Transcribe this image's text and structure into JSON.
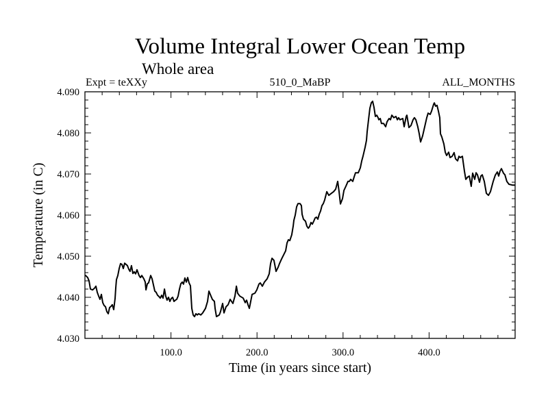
{
  "chart_data": {
    "type": "line",
    "title": "Volume Integral Lower Ocean Temp",
    "subtitle": "Whole area",
    "annotations": {
      "left": "Expt = teXXy",
      "center": "510_0_MaBP",
      "right": "ALL_MONTHS"
    },
    "xlabel": "Time (in years since start)",
    "ylabel": "Temperature (in C)",
    "xlim": [
      0,
      500
    ],
    "ylim": [
      4.03,
      4.09
    ],
    "x_ticks": [
      {
        "value": 100,
        "label": "100.0"
      },
      {
        "value": 200,
        "label": "200.0"
      },
      {
        "value": 300,
        "label": "300.0"
      },
      {
        "value": 400,
        "label": "400.0"
      }
    ],
    "x_minor_step": 20,
    "y_ticks": [
      {
        "value": 4.03,
        "label": "4.030"
      },
      {
        "value": 4.04,
        "label": "4.040"
      },
      {
        "value": 4.05,
        "label": "4.050"
      },
      {
        "value": 4.06,
        "label": "4.060"
      },
      {
        "value": 4.07,
        "label": "4.070"
      },
      {
        "value": 4.08,
        "label": "4.080"
      },
      {
        "value": 4.09,
        "label": "4.090"
      }
    ],
    "y_minor_step": 0.002,
    "grid": false,
    "legend": "none",
    "series": [
      {
        "name": "Lower Ocean Temp",
        "color": "#000000",
        "x": [
          0.8,
          3.2,
          4.8,
          6.4,
          8.8,
          11.1,
          12.7,
          14.3,
          15.9,
          17.5,
          19.1,
          20.7,
          22.3,
          23.9,
          25.5,
          27.1,
          28.7,
          30.3,
          31.8,
          33.4,
          35.0,
          35.8,
          36.6,
          38.2,
          39.8,
          41.4,
          43.0,
          44.6,
          46.2,
          47.8,
          49.4,
          51.0,
          52.5,
          54.1,
          55.7,
          57.3,
          58.9,
          60.5,
          62.9,
          64.5,
          66.1,
          68.5,
          70.1,
          70.9,
          72.5,
          74.0,
          76.4,
          78.0,
          79.6,
          81.2,
          82.8,
          84.4,
          86.0,
          87.6,
          89.2,
          90.8,
          92.4,
          93.9,
          95.5,
          97.1,
          98.7,
          100.3,
          101.9,
          103.5,
          105.1,
          106.7,
          108.3,
          109.9,
          111.5,
          113.1,
          114.6,
          116.2,
          117.8,
          119.4,
          121.0,
          122.6,
          124.2,
          125.8,
          127.4,
          129.0,
          130.6,
          132.2,
          134.6,
          136.9,
          140.1,
          142.5,
          144.1,
          146.5,
          148.1,
          150.5,
          151.3,
          152.9,
          156.1,
          157.6,
          160.0,
          161.6,
          164.0,
          166.4,
          168.8,
          172.0,
          174.4,
          176.0,
          177.5,
          179.9,
          183.9,
          186.3,
          187.9,
          189.5,
          191.1,
          192.7,
          194.3,
          197.5,
          199.8,
          202.2,
          203.8,
          206.2,
          208.6,
          211.8,
          214.2,
          215.8,
          217.4,
          219.7,
          222.1,
          224.5,
          226.1,
          228.5,
          230.9,
          233.3,
          234.9,
          236.5,
          238.1,
          240.4,
          242.0,
          242.8,
          244.4,
          246.0,
          247.6,
          250.0,
          251.6,
          252.4,
          254.0,
          256.4,
          258.0,
          259.6,
          261.1,
          262.7,
          264.3,
          265.9,
          267.5,
          269.1,
          270.7,
          272.3,
          273.9,
          275.5,
          277.1,
          278.7,
          281.1,
          283.4,
          285.8,
          289.0,
          291.4,
          293.8,
          295.4,
          297.0,
          299.4,
          301.0,
          303.3,
          305.7,
          307.3,
          308.9,
          311.3,
          312.9,
          314.5,
          317.7,
          320.1,
          321.7,
          323.2,
          325.6,
          327.2,
          328.0,
          329.6,
          331.2,
          332.8,
          334.4,
          336.0,
          337.6,
          339.2,
          340.8,
          341.6,
          343.2,
          344.7,
          347.1,
          349.5,
          351.1,
          353.5,
          355.1,
          356.7,
          359.1,
          361.5,
          363.1,
          364.6,
          366.2,
          369.4,
          371.0,
          373.4,
          374.2,
          376.6,
          379.0,
          381.4,
          383.0,
          384.6,
          386.9,
          388.5,
          390.1,
          392.5,
          394.9,
          397.3,
          398.9,
          401.3,
          402.9,
          405.3,
          406.1,
          407.6,
          409.2,
          410.8,
          412.4,
          413.2,
          414.8,
          417.2,
          418.8,
          420.4,
          422.8,
          424.4,
          426.8,
          429.1,
          430.7,
          433.1,
          434.7,
          436.3,
          438.7,
          441.1,
          442.7,
          445.1,
          446.7,
          449.0,
          450.6,
          453.0,
          454.6,
          456.2,
          458.6,
          460.2,
          461.8,
          464.2,
          466.6,
          469.0,
          471.3,
          474.5,
          476.9,
          479.3,
          480.9,
          482.5,
          484.1,
          486.5,
          488.1,
          490.4,
          492.8,
          496.8,
          499.2
        ],
        "y": [
          4.0453,
          4.0448,
          4.044,
          4.042,
          4.0418,
          4.0422,
          4.0427,
          4.0412,
          4.0403,
          4.0395,
          4.0407,
          4.0387,
          4.038,
          4.0377,
          4.0365,
          4.036,
          4.0375,
          4.0378,
          4.0382,
          4.037,
          4.0397,
          4.0423,
          4.0443,
          4.0453,
          4.047,
          4.0482,
          4.048,
          4.047,
          4.0483,
          4.048,
          4.0477,
          4.0468,
          4.0463,
          4.0477,
          4.0458,
          4.0462,
          4.0457,
          4.0467,
          4.0453,
          4.0448,
          4.0453,
          4.0445,
          4.0437,
          4.0418,
          4.0433,
          4.0435,
          4.0453,
          4.0445,
          4.043,
          4.0415,
          4.0412,
          4.0405,
          4.0402,
          4.0398,
          4.0405,
          4.0398,
          4.042,
          4.0403,
          4.0393,
          4.04,
          4.039,
          4.0397,
          4.04,
          4.039,
          4.0393,
          4.0395,
          4.0403,
          4.042,
          4.0433,
          4.0437,
          4.0432,
          4.0447,
          4.0437,
          4.0448,
          4.0435,
          4.0428,
          4.0373,
          4.0357,
          4.0353,
          4.036,
          4.0357,
          4.036,
          4.0357,
          4.0362,
          4.0373,
          4.039,
          4.0415,
          4.0403,
          4.0395,
          4.039,
          4.0373,
          4.0353,
          4.0357,
          4.0365,
          4.0385,
          4.0362,
          4.0377,
          4.0382,
          4.0395,
          4.0385,
          4.0403,
          4.0427,
          4.041,
          4.0403,
          4.0398,
          4.0387,
          4.0393,
          4.0382,
          4.0373,
          4.039,
          4.0407,
          4.041,
          4.0418,
          4.0432,
          4.0435,
          4.0427,
          4.0437,
          4.0445,
          4.0457,
          4.0482,
          4.0495,
          4.049,
          4.0463,
          4.0473,
          4.0482,
          4.0493,
          4.0503,
          4.0513,
          4.0532,
          4.054,
          4.0538,
          4.0552,
          4.0573,
          4.0587,
          4.06,
          4.062,
          4.0628,
          4.0628,
          4.0623,
          4.0602,
          4.059,
          4.0585,
          4.0573,
          4.0568,
          4.0572,
          4.0582,
          4.0578,
          4.0585,
          4.0593,
          4.0595,
          4.059,
          4.0602,
          4.061,
          4.0623,
          4.0628,
          4.0637,
          4.0657,
          4.0648,
          4.0652,
          4.0657,
          4.0663,
          4.0682,
          4.0657,
          4.0627,
          4.064,
          4.066,
          4.067,
          4.0682,
          4.0682,
          4.0687,
          4.0682,
          4.0693,
          4.0703,
          4.0703,
          4.0715,
          4.0732,
          4.0743,
          4.0765,
          4.0782,
          4.0803,
          4.0832,
          4.086,
          4.0873,
          4.0877,
          4.0862,
          4.084,
          4.0843,
          4.0837,
          4.0832,
          4.0835,
          4.0823,
          4.0823,
          4.0815,
          4.0827,
          4.0835,
          4.0832,
          4.0843,
          4.0837,
          4.084,
          4.0832,
          4.0837,
          4.0832,
          4.0835,
          4.0815,
          4.084,
          4.0843,
          4.0813,
          4.0818,
          4.0832,
          4.0837,
          4.0832,
          4.0815,
          4.0798,
          4.0778,
          4.0793,
          4.0815,
          4.0837,
          4.0848,
          4.0845,
          4.0853,
          4.087,
          4.0873,
          4.0865,
          4.0867,
          4.0853,
          4.0837,
          4.0798,
          4.079,
          4.0773,
          4.0753,
          4.0745,
          4.0753,
          4.074,
          4.0743,
          4.0752,
          4.0737,
          4.0732,
          4.0743,
          4.074,
          4.0743,
          4.0707,
          4.0687,
          4.0693,
          4.0695,
          4.067,
          4.0702,
          4.0687,
          4.0703,
          4.0698,
          4.068,
          4.0695,
          4.0698,
          4.0682,
          4.0653,
          4.0648,
          4.0657,
          4.0682,
          4.0697,
          4.0705,
          4.0695,
          4.0707,
          4.0713,
          4.0702,
          4.0698,
          4.0682,
          4.0675,
          4.0673,
          4.0673
        ]
      }
    ]
  }
}
